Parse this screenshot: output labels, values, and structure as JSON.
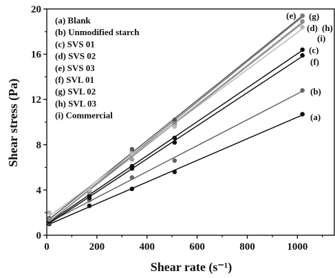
{
  "chart_data": {
    "type": "line",
    "title": "",
    "xlabel": "Shear rate (s⁻¹)",
    "ylabel": "Shear stress (Pa)",
    "xlim": [
      0,
      1150
    ],
    "ylim": [
      0,
      20
    ],
    "xticks": [
      "0",
      "200",
      "400",
      "600",
      "800",
      "1000"
    ],
    "yticks": [
      "0",
      "4",
      "8",
      "12",
      "16",
      "20"
    ],
    "legend_position": "top-left",
    "grid": false,
    "legend": [
      "(a) Blank",
      "(b) Unmodified starch",
      "(c) SVS 01",
      "(d) SVS 02",
      "(e) SVS 03",
      "(f) SVL 01",
      "(g) SVL 02",
      "(h) SVL 03",
      "(i) Commercial"
    ],
    "x": [
      10,
      170,
      340,
      510,
      1020
    ],
    "series": [
      {
        "key": "a",
        "label": "(a)",
        "color": "#111111",
        "values": [
          1.0,
          2.6,
          4.1,
          5.6,
          10.7
        ]
      },
      {
        "key": "b",
        "label": "(b)",
        "color": "#666666",
        "values": [
          1.1,
          3.1,
          5.1,
          6.6,
          12.8
        ]
      },
      {
        "key": "c",
        "label": "(c)",
        "color": "#111111",
        "values": [
          1.3,
          3.5,
          6.1,
          8.6,
          16.4
        ]
      },
      {
        "key": "d",
        "label": "(d)",
        "color": "#a0a0a0",
        "values": [
          1.5,
          3.9,
          6.7,
          9.7,
          18.9
        ]
      },
      {
        "key": "e",
        "label": "(e)",
        "color": "#555555",
        "values": [
          1.5,
          4.0,
          7.6,
          10.2,
          19.4
        ]
      },
      {
        "key": "f",
        "label": "(f)",
        "color": "#111111",
        "values": [
          1.2,
          3.3,
          5.9,
          8.2,
          15.9
        ]
      },
      {
        "key": "g",
        "label": "(g)",
        "color": "#7a7a7a",
        "values": [
          1.4,
          3.8,
          7.3,
          9.9,
          19.4
        ]
      },
      {
        "key": "h",
        "label": "(h)",
        "color": "#8c8c8c",
        "values": [
          1.4,
          3.8,
          7.1,
          9.8,
          18.9
        ]
      },
      {
        "key": "i",
        "label": "(i)",
        "color": "#b8b8b8",
        "values": [
          2.0,
          4.0,
          7.2,
          9.6,
          18.4
        ]
      }
    ]
  }
}
